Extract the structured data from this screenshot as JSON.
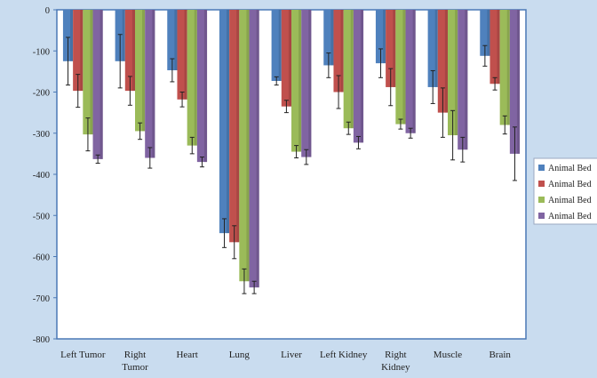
{
  "colors": {
    "background": "#c9dcef",
    "plot_background": "#ffffff",
    "frame": "#4a78b5",
    "series": [
      "#4f81bd",
      "#c0504d",
      "#9bbb59",
      "#8064a2"
    ]
  },
  "chart_data": {
    "type": "bar",
    "title": "",
    "xlabel": "",
    "ylabel": "",
    "ylim": [
      -800,
      0
    ],
    "yticks": [
      0,
      -100,
      -200,
      -300,
      -400,
      -500,
      -600,
      -700,
      -800
    ],
    "grid": false,
    "legend_position": "right",
    "categories": [
      [
        "Left Tumor"
      ],
      [
        "Right",
        "Tumor"
      ],
      [
        "Heart"
      ],
      [
        "Lung"
      ],
      [
        "Liver"
      ],
      [
        "Left Kidney"
      ],
      [
        "Right",
        "Kidney"
      ],
      [
        "Muscle"
      ],
      [
        "Brain"
      ]
    ],
    "series": [
      {
        "name": "Animal Bed",
        "values": [
          -125,
          -125,
          -147,
          -543,
          -173,
          -135,
          -130,
          -188,
          -112
        ],
        "errors": [
          58,
          65,
          28,
          35,
          10,
          30,
          35,
          40,
          25
        ]
      },
      {
        "name": "Animal Bed",
        "values": [
          -197,
          -197,
          -218,
          -565,
          -235,
          -200,
          -188,
          -250,
          -180
        ],
        "errors": [
          40,
          35,
          18,
          40,
          15,
          40,
          45,
          60,
          15
        ]
      },
      {
        "name": "Animal Bed",
        "values": [
          -303,
          -295,
          -330,
          -660,
          -345,
          -288,
          -278,
          -305,
          -280
        ],
        "errors": [
          40,
          20,
          20,
          30,
          15,
          15,
          12,
          60,
          22
        ]
      },
      {
        "name": "Animal Bed",
        "values": [
          -363,
          -360,
          -370,
          -675,
          -358,
          -323,
          -300,
          -340,
          -350
        ],
        "errors": [
          10,
          25,
          12,
          15,
          18,
          15,
          12,
          30,
          65
        ]
      }
    ]
  }
}
